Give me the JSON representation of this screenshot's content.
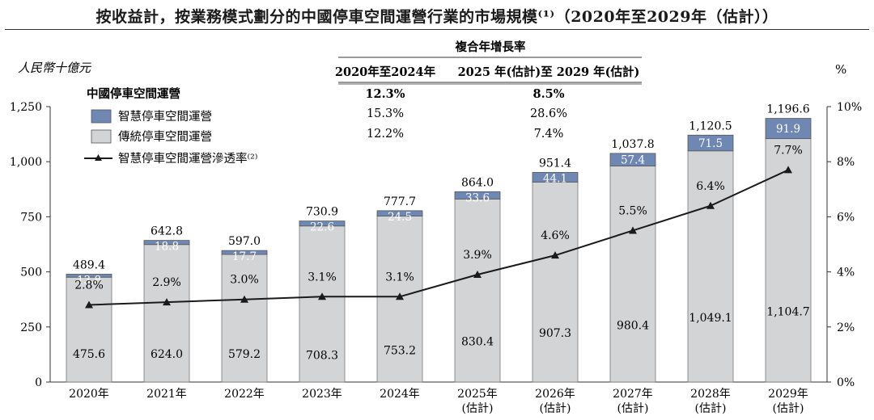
{
  "title": "按收益計，按業務模式劃分的中國停車空間運營行業的市場規模⁽¹⁾（2020年至2029年（估計））",
  "cagr": {
    "heading": "複合年增長率",
    "period_headers": [
      "2020年至2024年",
      "2025 年(估計)至 2029 年(估計)"
    ],
    "rows": [
      {
        "label": "中國停車空間運營",
        "values": [
          "12.3%",
          "8.5%"
        ],
        "bold": true
      },
      {
        "label": "智慧停車空間運營",
        "values": [
          "15.3%",
          "28.6%"
        ],
        "bold": false
      },
      {
        "label": "傳統停車空間運營",
        "values": [
          "12.2%",
          "7.4%"
        ],
        "bold": false
      }
    ]
  },
  "legend": [
    {
      "label": "智慧停車空間運營",
      "kind": "box",
      "color": "#6f87b3"
    },
    {
      "label": "傳統停車空間運營",
      "kind": "box",
      "color": "#d3d4d6"
    },
    {
      "label": "智慧停車空間運營滲透率⁽²⁾",
      "kind": "line",
      "color": "#1a1a1a"
    }
  ],
  "colors": {
    "smart": "#6f87b3",
    "traditional": "#d3d4d6",
    "line": "#1a1a1a",
    "axis": "#333333"
  },
  "chart_data": {
    "type": "bar",
    "stacked": true,
    "categories": [
      [
        "2020年"
      ],
      [
        "2021年"
      ],
      [
        "2022年"
      ],
      [
        "2023年"
      ],
      [
        "2024年"
      ],
      [
        "2025年",
        "(估計)"
      ],
      [
        "2026年",
        "(估計)"
      ],
      [
        "2027年",
        "(估計)"
      ],
      [
        "2028年",
        "(估計)"
      ],
      [
        "2029年",
        "(估計)"
      ]
    ],
    "series": [
      {
        "name": "傳統停車空間運營",
        "values": [
          475.6,
          624.0,
          579.2,
          708.3,
          753.2,
          830.4,
          907.3,
          980.4,
          1049.1,
          1104.7
        ],
        "labels": [
          "475.6",
          "624.0",
          "579.2",
          "708.3",
          "753.2",
          "830.4",
          "907.3",
          "980.4",
          "1,049.1",
          "1,104.7"
        ]
      },
      {
        "name": "智慧停車空間運營",
        "values": [
          13.8,
          18.8,
          17.7,
          22.6,
          24.5,
          33.6,
          44.1,
          57.4,
          71.5,
          91.9
        ],
        "labels": [
          "13.8",
          "18.8",
          "17.7",
          "22.6",
          "24.5",
          "33.6",
          "44.1",
          "57.4",
          "71.5",
          "91.9"
        ]
      }
    ],
    "totals": [
      489.4,
      642.8,
      597.0,
      730.9,
      777.7,
      864.0,
      951.4,
      1037.8,
      1120.5,
      1196.6
    ],
    "total_labels": [
      "489.4",
      "642.8",
      "597.0",
      "730.9",
      "777.7",
      "864.0",
      "951.4",
      "1,037.8",
      "1,120.5",
      "1,196.6"
    ],
    "line_series": {
      "name": "智慧停車空間運營滲透率",
      "axis": "right",
      "values": [
        2.8,
        2.9,
        3.0,
        3.1,
        3.1,
        3.9,
        4.6,
        5.5,
        6.4,
        7.7
      ],
      "labels": [
        "2.8%",
        "2.9%",
        "3.0%",
        "3.1%",
        "3.1%",
        "3.9%",
        "4.6%",
        "5.5%",
        "6.4%",
        "7.7%"
      ]
    },
    "ylabel": "人民幣十億元",
    "ylim": [
      0,
      1250
    ],
    "yticks": [
      0,
      250,
      500,
      750,
      1000,
      1250
    ],
    "ytick_labels": [
      "0",
      "250",
      "500",
      "750",
      "1,000",
      "1,250"
    ],
    "y2label": "%",
    "y2lim": [
      0,
      10
    ],
    "y2ticks": [
      0,
      2,
      4,
      6,
      8,
      10
    ],
    "y2tick_labels": [
      "0%",
      "2%",
      "4%",
      "6%",
      "8%",
      "10%"
    ],
    "grid": false,
    "legend_position": "top-left"
  }
}
